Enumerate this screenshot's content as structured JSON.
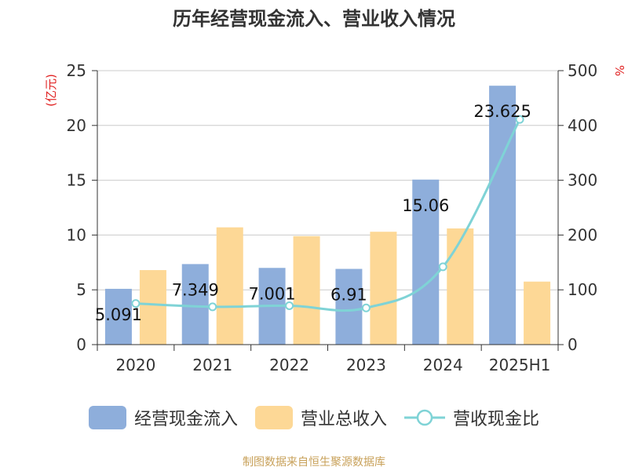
{
  "chart_data": {
    "type": "bar",
    "title": "历年经营现金流入、营业收入情况",
    "categories": [
      "2020",
      "2021",
      "2022",
      "2023",
      "2024",
      "2025H1"
    ],
    "ylabel_left": "(亿元)",
    "ylabel_right": "%",
    "ylim_left": [
      0,
      25
    ],
    "ylim_right": [
      0,
      500
    ],
    "yticks_left": [
      "0",
      "5",
      "10",
      "15",
      "20",
      "25"
    ],
    "yticks_right": [
      "0",
      "100",
      "200",
      "300",
      "400",
      "500"
    ],
    "grid": true,
    "legend_position": "bottom",
    "series": [
      {
        "name": "经营现金流入",
        "kind": "bar",
        "axis": "left",
        "color": "#8eaedb",
        "values": [
          5.091,
          7.349,
          7.001,
          6.91,
          15.06,
          23.625
        ],
        "labels": [
          "5.091",
          "7.349",
          "7.001",
          "6.91",
          "15.06",
          "23.625"
        ]
      },
      {
        "name": "营业总收入",
        "kind": "bar",
        "axis": "left",
        "color": "#fdd896",
        "values": [
          6.8,
          10.7,
          9.9,
          10.3,
          10.6,
          5.75
        ]
      },
      {
        "name": "营收现金比",
        "kind": "line",
        "axis": "right",
        "color": "#7fd3d6",
        "values": [
          75,
          69,
          71,
          67,
          142,
          411
        ]
      }
    ],
    "source_note": "制图数据来自恒生聚源数据库"
  }
}
